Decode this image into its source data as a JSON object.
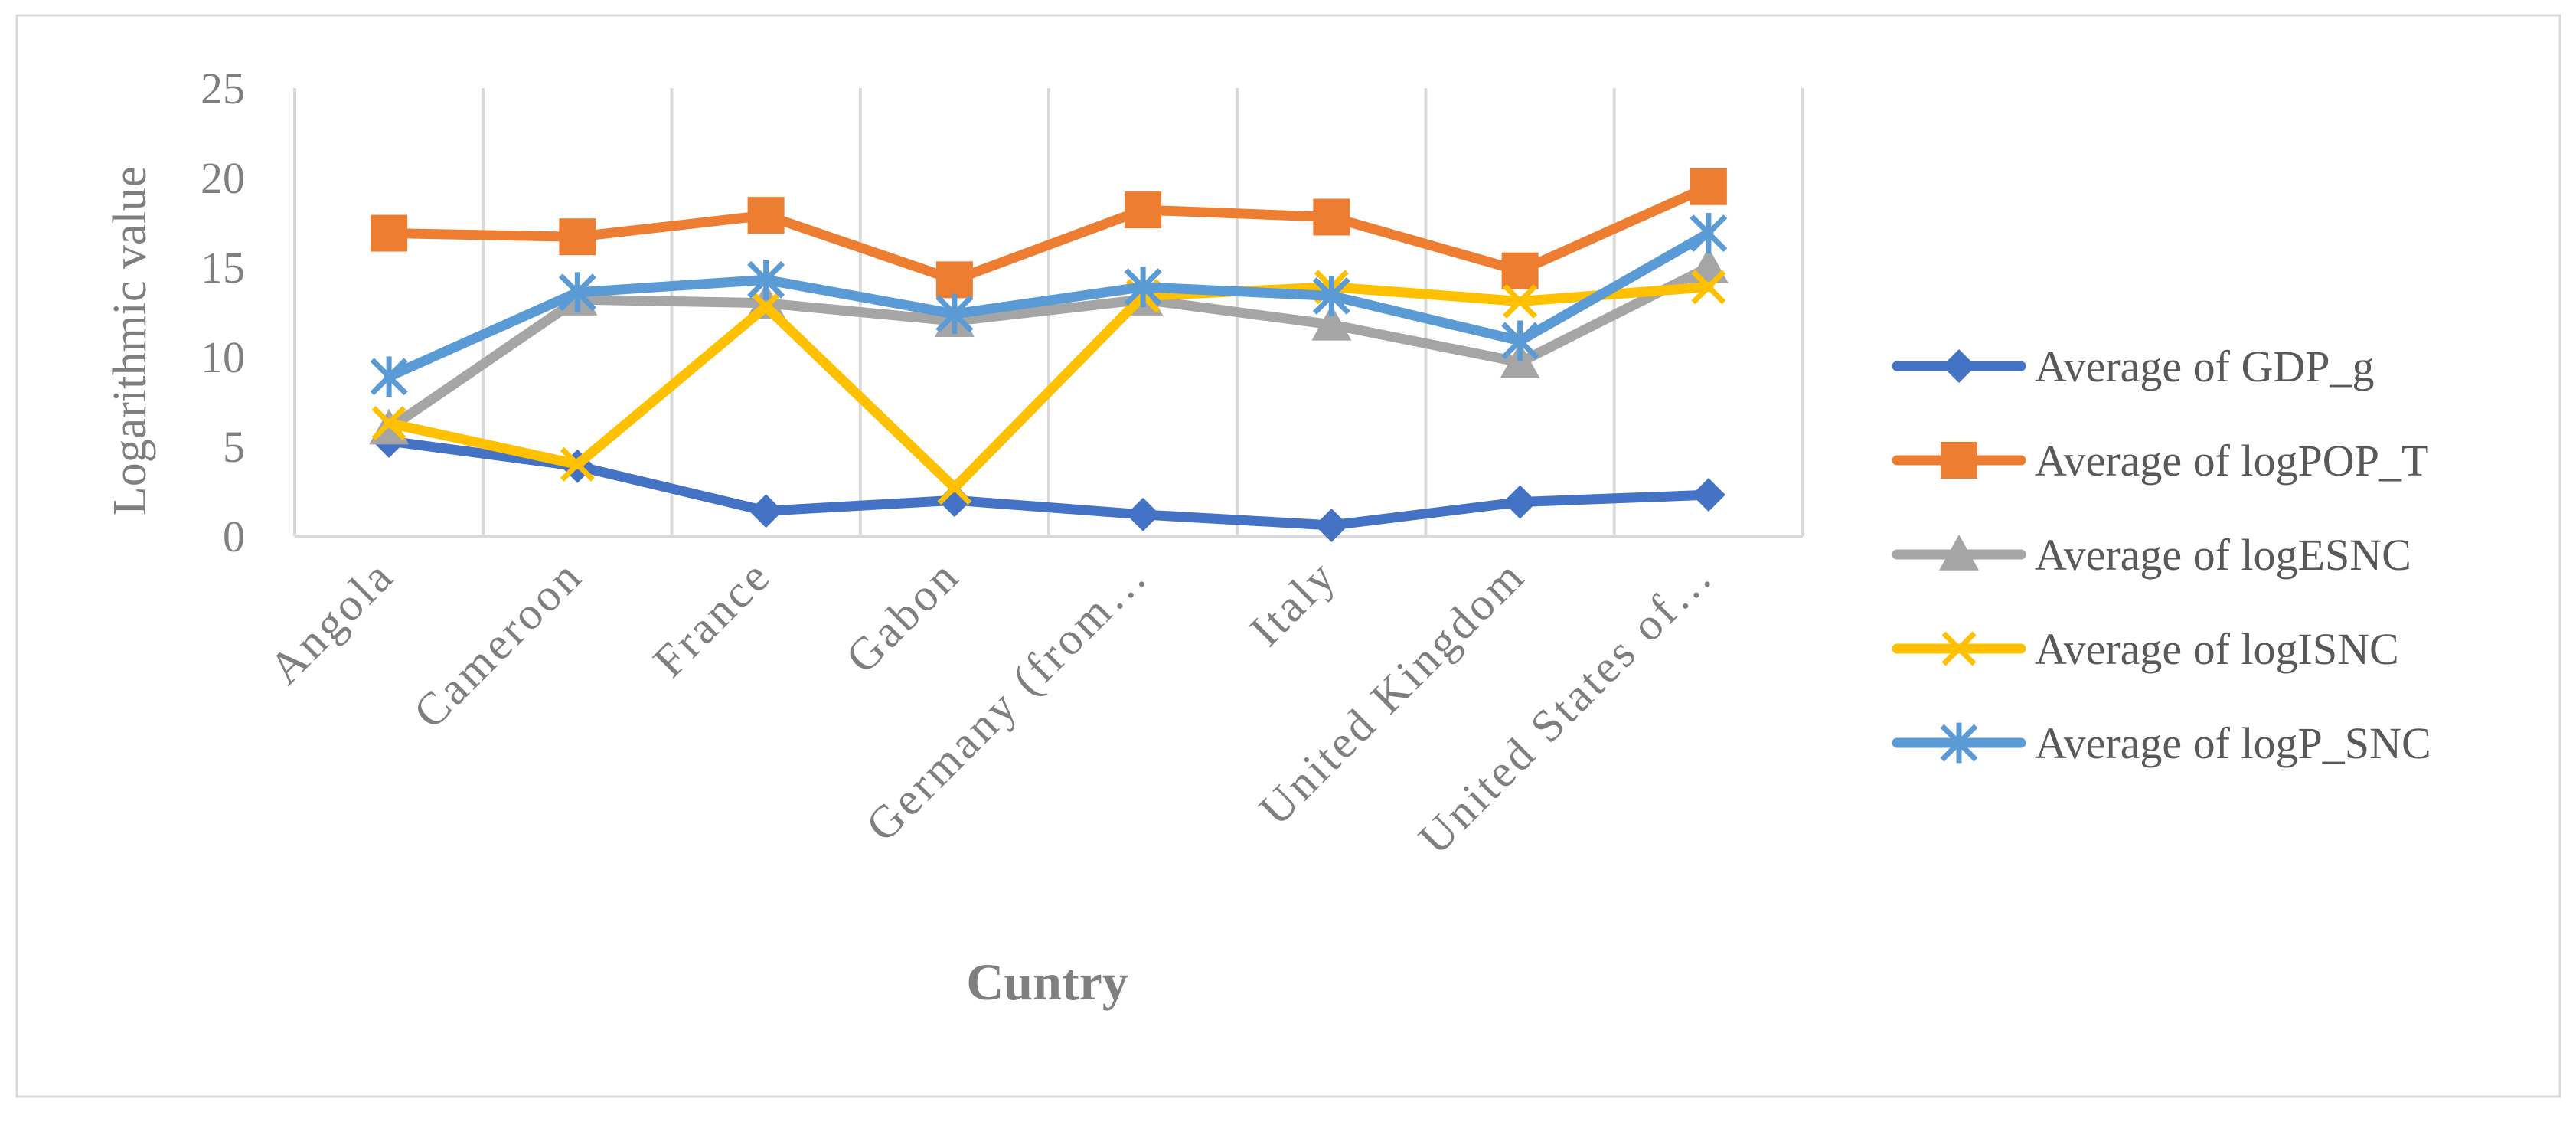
{
  "chart_data": {
    "type": "line",
    "title": "",
    "xlabel": "Cuntry",
    "ylabel": "Logarithmic value",
    "categories": [
      "Angola",
      "Cameroon",
      "France",
      "Gabon",
      "Germany (from…",
      "Italy",
      "United Kingdom",
      "United States of…"
    ],
    "ylim": [
      0,
      25
    ],
    "yticks": [
      "0",
      "5",
      "10",
      "15",
      "20",
      "25"
    ],
    "grid": "vertical",
    "legend_position": "right",
    "series": [
      {
        "name": "Average of GDP_g",
        "color": "#4472C4",
        "marker": "diamond",
        "values": [
          5.3,
          3.9,
          1.4,
          2.0,
          1.2,
          0.6,
          1.9,
          2.3
        ]
      },
      {
        "name": "Average of logPOP_T",
        "color": "#ED7D31",
        "marker": "square",
        "values": [
          16.9,
          16.7,
          17.9,
          14.3,
          18.2,
          17.8,
          14.8,
          19.5
        ]
      },
      {
        "name": "Average of logESNC",
        "color": "#A5A5A5",
        "marker": "triangle",
        "values": [
          6.0,
          13.2,
          13.0,
          12.0,
          13.2,
          11.8,
          9.7,
          15.0
        ]
      },
      {
        "name": "Average of logISNC",
        "color": "#FFC000",
        "marker": "x",
        "values": [
          6.3,
          4.0,
          12.8,
          2.7,
          13.4,
          13.9,
          13.1,
          13.9
        ]
      },
      {
        "name": "Average of logP_SNC",
        "color": "#5B9BD5",
        "marker": "star",
        "values": [
          8.9,
          13.6,
          14.3,
          12.4,
          13.9,
          13.4,
          10.9,
          16.9
        ]
      }
    ]
  }
}
